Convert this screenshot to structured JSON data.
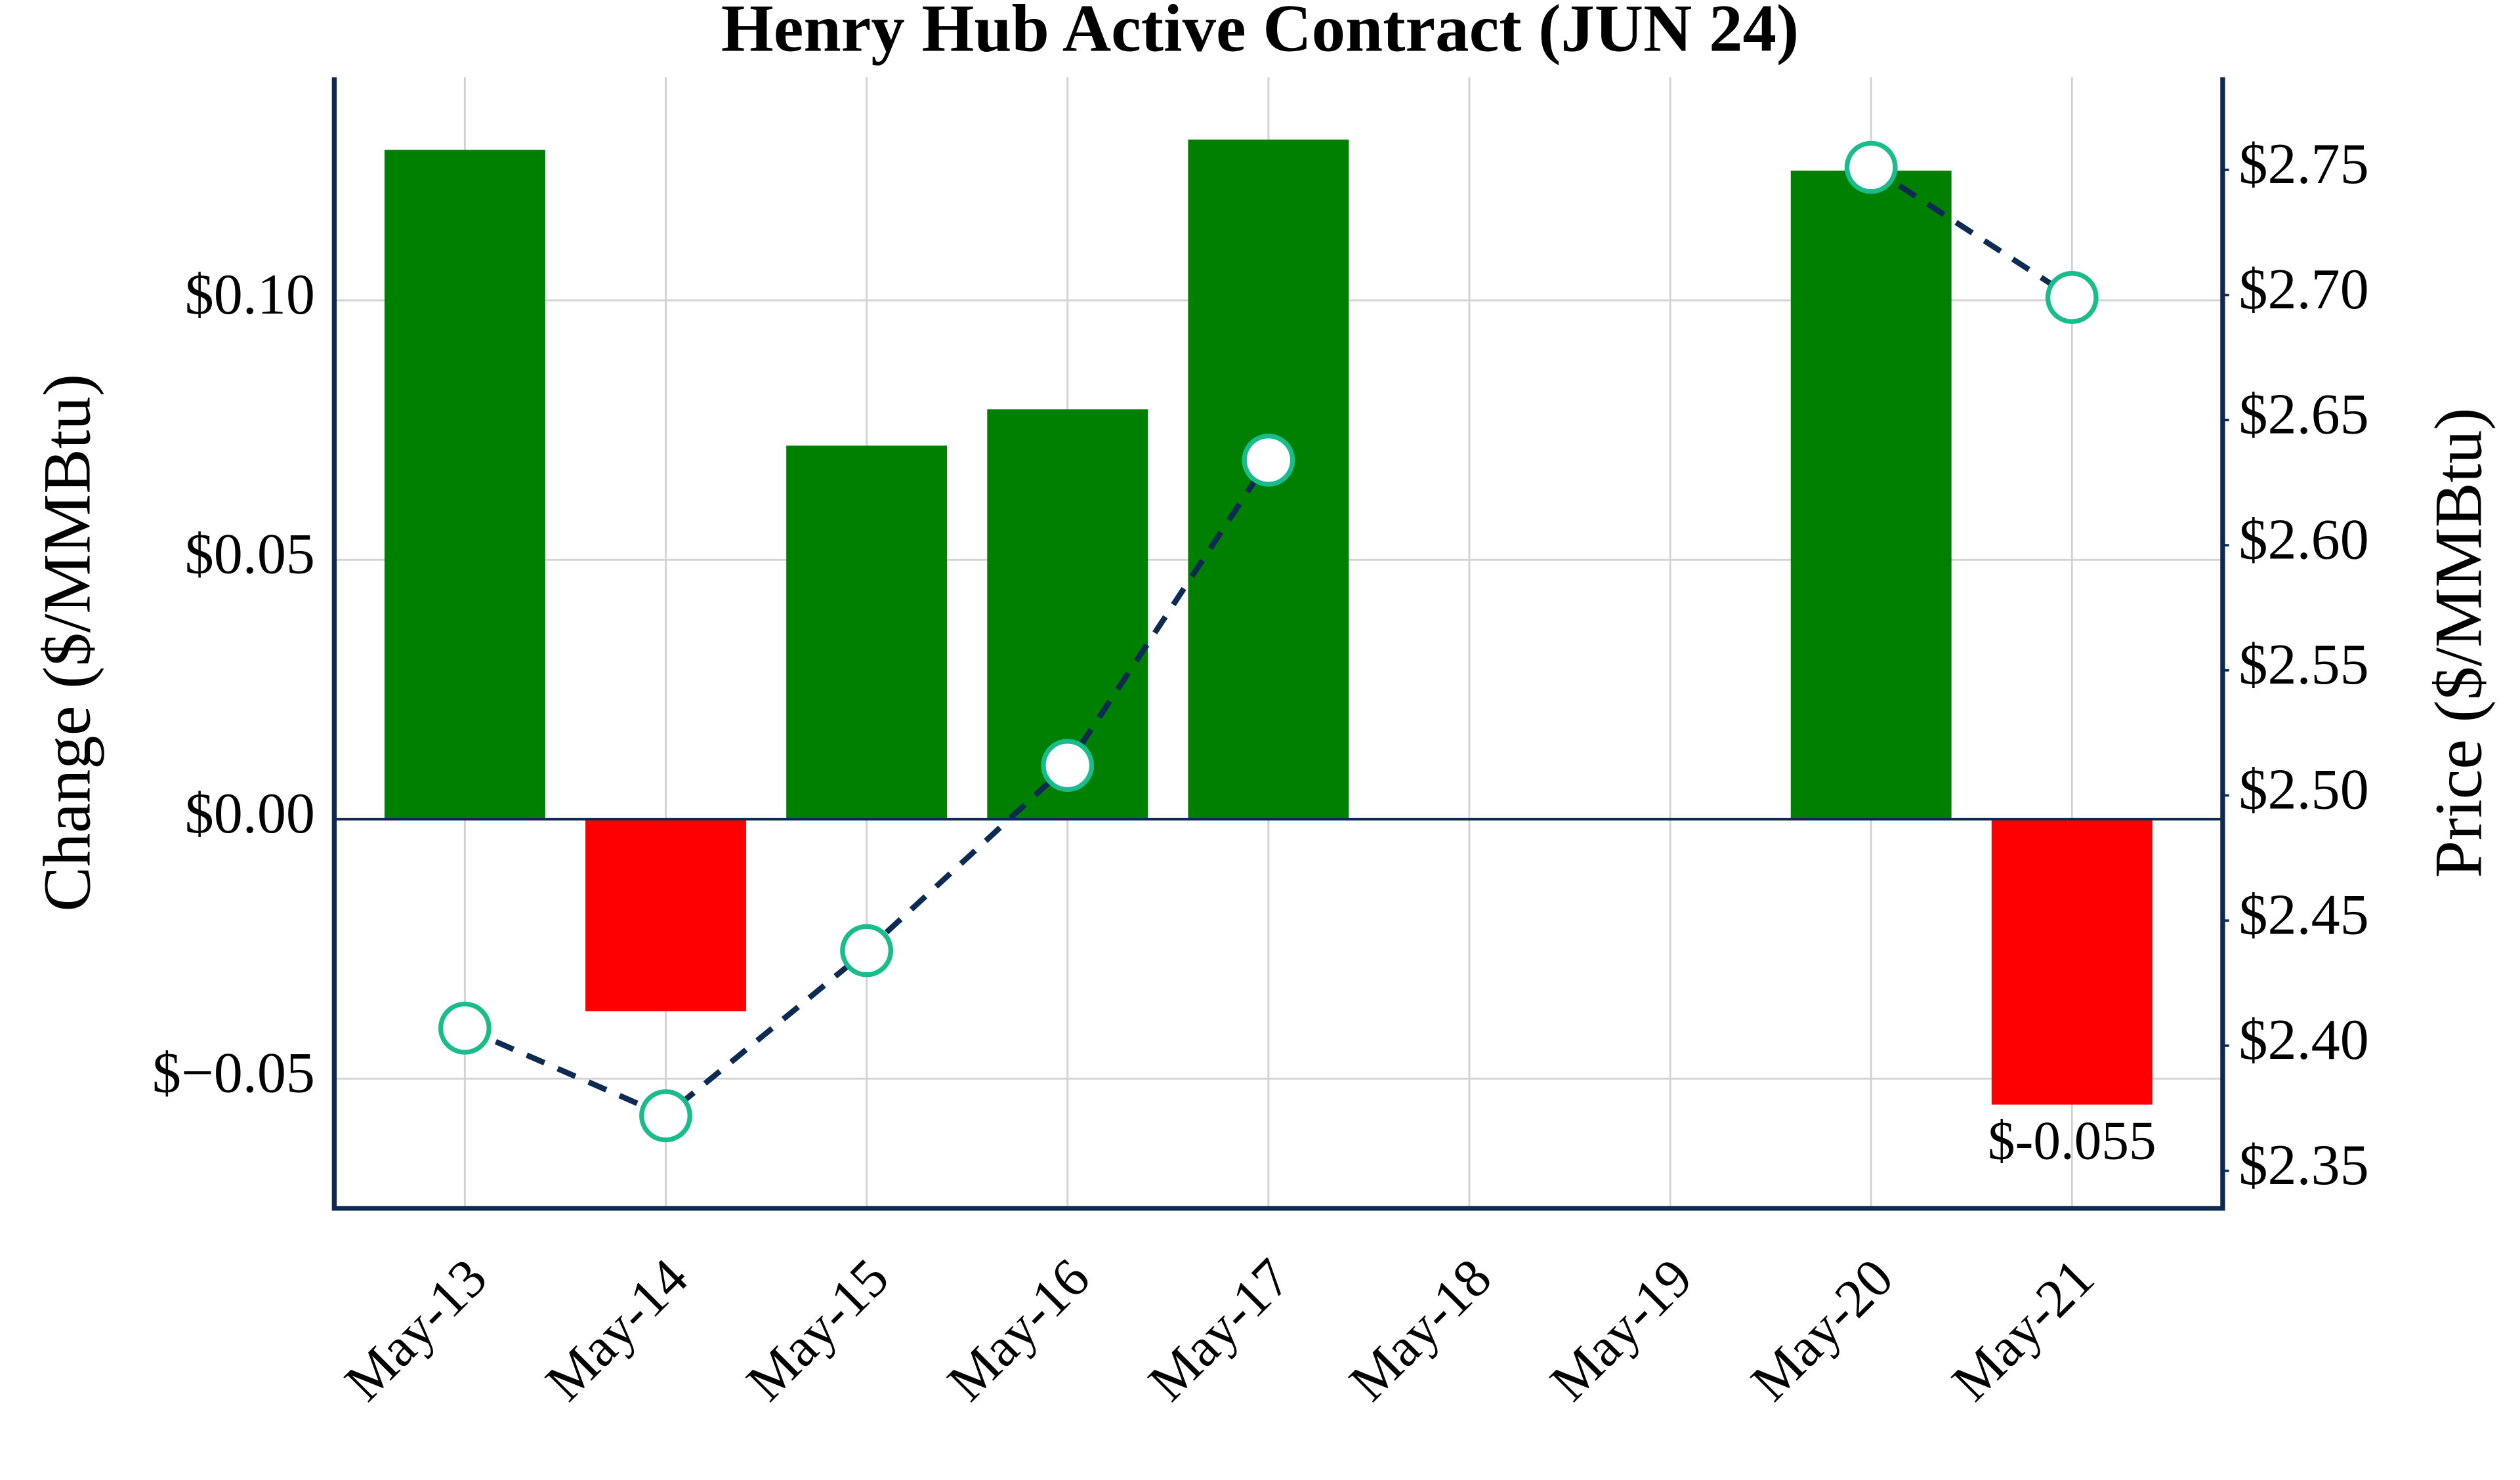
{
  "chart_data": {
    "type": "bar",
    "title": "Henry Hub Active Contract (JUN 24)",
    "ylabel": "Change ($/MMBtu)",
    "y2label": "Price ($/MMBtu)",
    "categories": [
      "May-13",
      "May-14",
      "May-15",
      "May-16",
      "May-17",
      "May-18",
      "May-19",
      "May-20",
      "May-21"
    ],
    "series": [
      {
        "type": "bar",
        "values": [
          0.129,
          -0.037,
          0.072,
          0.079,
          0.131,
          null,
          null,
          0.125,
          -0.055
        ],
        "value_labels": [
          null,
          null,
          null,
          null,
          null,
          null,
          null,
          null,
          "$-0.055"
        ],
        "positive_color": "#008000",
        "negative_color": "#ff0000"
      },
      {
        "type": "line",
        "axis": "y2",
        "values": [
          2.407,
          2.372,
          2.438,
          2.512,
          2.634,
          null,
          null,
          2.751,
          2.699
        ],
        "color": "#0d2b52",
        "dashed": true,
        "marker_edge_color": "#1abc8c",
        "marker_face_color": "#ffffff"
      }
    ],
    "ylim": [
      -0.075,
      0.143
    ],
    "yticks": [
      {
        "value": -0.05,
        "label": "$−0.05"
      },
      {
        "value": 0,
        "label": "$0.00"
      },
      {
        "value": 0.05,
        "label": "$0.05"
      },
      {
        "value": 0.1,
        "label": "$0.10"
      }
    ],
    "y2lim": [
      2.335,
      2.787
    ],
    "y2ticks": [
      {
        "value": 2.35,
        "label": "$2.35"
      },
      {
        "value": 2.4,
        "label": "$2.40"
      },
      {
        "value": 2.45,
        "label": "$2.45"
      },
      {
        "value": 2.5,
        "label": "$2.50"
      },
      {
        "value": 2.55,
        "label": "$2.55"
      },
      {
        "value": 2.6,
        "label": "$2.60"
      },
      {
        "value": 2.65,
        "label": "$2.65"
      },
      {
        "value": 2.7,
        "label": "$2.70"
      },
      {
        "value": 2.75,
        "label": "$2.75"
      }
    ],
    "grid": true,
    "axis_color": "#0d2b52"
  }
}
